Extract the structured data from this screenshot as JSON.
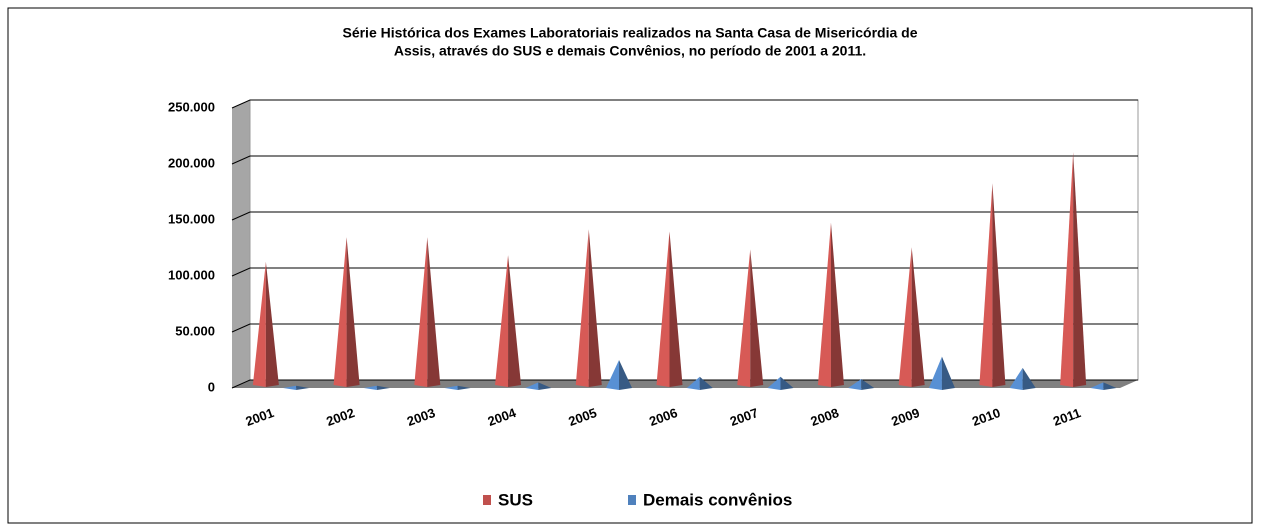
{
  "chart_data": {
    "type": "pyramid3d",
    "title": [
      "Série Histórica dos Exames Laboratoriais realizados na Santa Casa de Misericórdia de",
      "Assis, através do SUS e demais Convênios, no período de 2001 a 2011."
    ],
    "categories": [
      "2001",
      "2002",
      "2003",
      "2004",
      "2005",
      "2006",
      "2007",
      "2008",
      "2009",
      "2010",
      "2011"
    ],
    "series": [
      {
        "name": "SUS",
        "color": "#c0504d",
        "values": [
          110000,
          132000,
          132000,
          116000,
          139000,
          137000,
          121000,
          145000,
          123000,
          180000,
          208000
        ]
      },
      {
        "name": "Demais convênios",
        "color": "#4f81bd",
        "values": [
          2000,
          2000,
          2000,
          5000,
          25000,
          10000,
          10000,
          8000,
          28000,
          18000,
          5000
        ]
      }
    ],
    "ylim": [
      0,
      250000
    ],
    "yticks": [
      0,
      {
        "value": 50000,
        "label": "50.000"
      },
      {
        "value": 100000,
        "label": "100.000"
      },
      {
        "value": 150000,
        "label": "150.000"
      },
      {
        "value": 200000,
        "label": "200.000"
      },
      {
        "value": 250000,
        "label": "250.000"
      }
    ],
    "grid": true
  }
}
